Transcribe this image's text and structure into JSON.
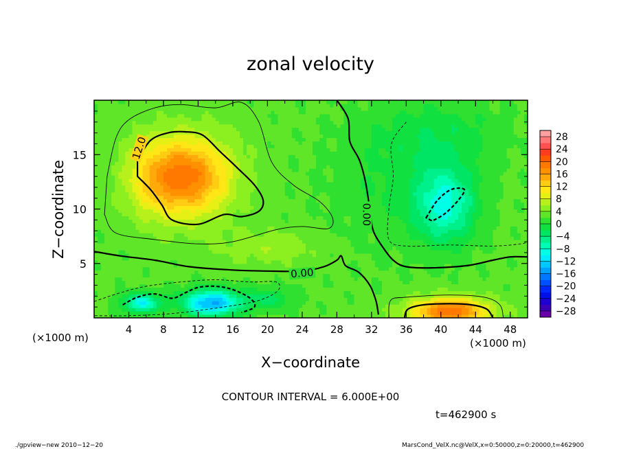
{
  "chart_data": {
    "type": "heatmap",
    "title": "zonal velocity",
    "xlabel": "X−coordinate",
    "ylabel": "Z−coordinate",
    "x_unit": "(×1000 m)",
    "xlim": [
      0,
      50
    ],
    "ylim": [
      0,
      20
    ],
    "x_ticks": [
      "4",
      "8",
      "12",
      "16",
      "20",
      "24",
      "28",
      "32",
      "36",
      "40",
      "44",
      "48"
    ],
    "y_ticks": [
      "5",
      "10",
      "15"
    ],
    "contour_interval_label": "CONTOUR INTERVAL = 6.000E+00",
    "contour_labels": [
      "12.0",
      "0.00",
      "0.00"
    ],
    "colorbar": {
      "labels": [
        "28",
        "24",
        "20",
        "16",
        "12",
        "8",
        "4",
        "0",
        "−4",
        "−8",
        "−12",
        "−16",
        "−20",
        "−24",
        "−28"
      ],
      "levels": [
        -30,
        -28,
        -26,
        -24,
        -22,
        -20,
        -18,
        -16,
        -14,
        -12,
        -10,
        -8,
        -6,
        -4,
        -2,
        0,
        2,
        4,
        6,
        8,
        10,
        12,
        14,
        16,
        18,
        20,
        22,
        24,
        26,
        28,
        30
      ],
      "colors": [
        "#6a00a8",
        "#3c00b4",
        "#1e00d2",
        "#0010e6",
        "#0028ff",
        "#0050ff",
        "#0078ff",
        "#00a0ff",
        "#00c8ff",
        "#00ebff",
        "#00ffe6",
        "#00ffb4",
        "#00f08c",
        "#00e664",
        "#10e040",
        "#30e030",
        "#60e628",
        "#8cf020",
        "#b8f01c",
        "#e6f014",
        "#ffe614",
        "#ffcc14",
        "#ffaa0a",
        "#ff9000",
        "#ff7800",
        "#ff5a00",
        "#ff3c1e",
        "#ff5050",
        "#ff7878",
        "#ffa0a0"
      ]
    },
    "features": [
      {
        "label": "max",
        "x": 10.5,
        "z": 12.5,
        "value": 19
      },
      {
        "label": "max",
        "x": 41,
        "z": 0.8,
        "value": 18
      },
      {
        "label": "min",
        "x": 13.5,
        "z": 1.5,
        "value": -17
      },
      {
        "label": "min",
        "x": 5.5,
        "z": 1.5,
        "value": -12
      },
      {
        "label": "min",
        "x": 40.5,
        "z": 10.5,
        "value": -11
      }
    ]
  },
  "time_label": "t=462900 s",
  "footer_left": "./gpview−new   2010−12−20",
  "footer_right": "MarsCond_VelX.nc@VelX,x=0:50000,z=0:20000,t=462900"
}
